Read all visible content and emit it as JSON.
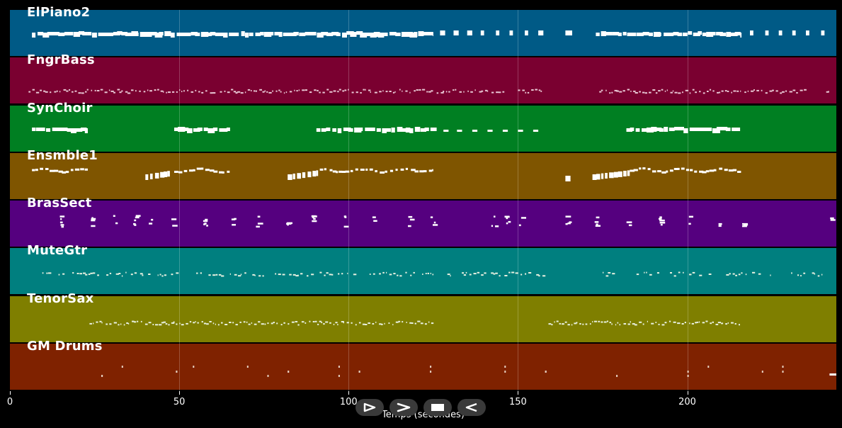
{
  "viewer": {
    "xlabel": "Temps (secondes)",
    "x_range": [
      0,
      244
    ],
    "x_ticks": [
      {
        "value": 0,
        "label": "0"
      },
      {
        "value": 50,
        "label": "50"
      },
      {
        "value": 100,
        "label": "100"
      },
      {
        "value": 150,
        "label": "150"
      },
      {
        "value": 200,
        "label": "200"
      }
    ]
  },
  "tracks": [
    {
      "name": "ElPiano2",
      "color": "#005a86",
      "style": "solid",
      "segments": [
        [
          6.5,
          125
        ],
        [
          127,
          128.5
        ],
        [
          131,
          132.5
        ],
        [
          135,
          136.5
        ],
        [
          139,
          140
        ],
        [
          143.5,
          144.5
        ],
        [
          147.5,
          148.5
        ],
        [
          152,
          153
        ],
        [
          156,
          157.5
        ],
        [
          164,
          166
        ],
        [
          173,
          216
        ],
        [
          218.5,
          219.5
        ],
        [
          223,
          224
        ],
        [
          227,
          228
        ],
        [
          231,
          232
        ],
        [
          235,
          236
        ],
        [
          239.5,
          240.5
        ]
      ]
    },
    {
      "name": "FngrBass",
      "color": "#7a0030",
      "style": "sparse",
      "segments": [
        [
          5.5,
          60
        ],
        [
          62,
          125
        ],
        [
          126,
          146
        ],
        [
          150,
          158
        ],
        [
          174,
          235
        ],
        [
          241,
          242
        ]
      ]
    },
    {
      "name": "SynChoir",
      "color": "#007f22",
      "style": "solid",
      "segments": [
        [
          6.5,
          23
        ],
        [
          48.5,
          65
        ],
        [
          90.5,
          126
        ],
        [
          128,
          129.5
        ],
        [
          132,
          133.5
        ],
        [
          136.5,
          138
        ],
        [
          141,
          142.5
        ],
        [
          145.5,
          147
        ],
        [
          150,
          151.5
        ],
        [
          154.5,
          156
        ],
        [
          182,
          216
        ]
      ]
    },
    {
      "name": "Ensmble1",
      "color": "#7f5500",
      "style": "stair",
      "segments": [
        [
          6.5,
          23
        ],
        [
          40,
          48
        ],
        [
          48.5,
          65
        ],
        [
          82,
          91
        ],
        [
          91.5,
          125
        ],
        [
          164,
          165.5
        ],
        [
          172,
          183
        ],
        [
          183,
          216
        ]
      ]
    },
    {
      "name": "BrasSect",
      "color": "#55007f",
      "style": "cluster",
      "points": [
        14,
        23,
        30,
        36,
        41,
        47,
        57,
        65,
        72,
        81,
        89,
        98,
        107,
        117,
        124,
        142,
        146,
        150,
        164,
        172,
        182,
        191,
        200,
        208,
        216,
        242
      ]
    },
    {
      "name": "MuteGtr",
      "color": "#007f7f",
      "style": "sparse",
      "segments": [
        [
          8,
          50
        ],
        [
          55,
          125
        ],
        [
          128,
          145
        ],
        [
          146,
          158
        ],
        [
          175,
          178
        ],
        [
          185,
          240
        ]
      ]
    },
    {
      "name": "TenorSax",
      "color": "#7f7f00",
      "style": "sparse",
      "segments": [
        [
          23.5,
          125
        ],
        [
          159,
          216
        ]
      ]
    },
    {
      "name": "GM Drums",
      "color": "#7f2200",
      "style": "drums",
      "points": [
        27,
        33,
        49,
        54,
        70,
        76,
        82,
        97,
        103,
        124,
        146,
        158,
        179,
        200,
        206,
        222,
        228
      ],
      "end_bar": [
        242,
        244
      ]
    }
  ]
}
